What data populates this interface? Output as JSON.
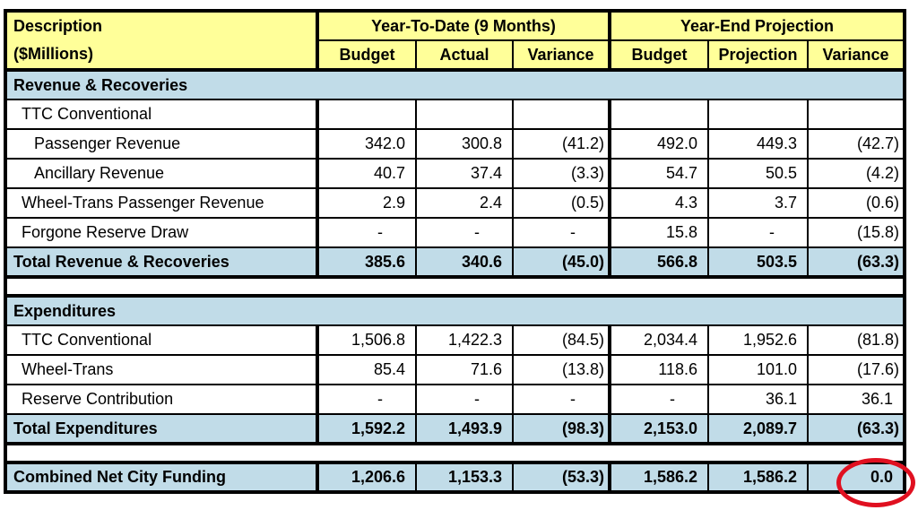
{
  "colors": {
    "header_bg": "#FFFF99",
    "band_bg": "#C1DCE8",
    "border": "#000000",
    "annotation_red": "#E01020",
    "page_bg": "#FFFFFF"
  },
  "header": {
    "description_line1": "Description",
    "description_line2": "($Millions)",
    "groups": [
      {
        "label": "Year-To-Date (9 Months)",
        "columns": [
          "Budget",
          "Actual",
          "Variance"
        ]
      },
      {
        "label": "Year-End Projection",
        "columns": [
          "Budget",
          "Projection",
          "Variance"
        ]
      }
    ]
  },
  "rows": [
    {
      "type": "section",
      "label": "Revenue & Recoveries"
    },
    {
      "type": "data",
      "indent": 1,
      "label": "TTC Conventional",
      "values": [
        "",
        "",
        "",
        "",
        "",
        ""
      ]
    },
    {
      "type": "data",
      "indent": 2,
      "label": "Passenger Revenue",
      "values": [
        "342.0",
        "300.8",
        "(41.2)",
        "492.0",
        "449.3",
        "(42.7)"
      ]
    },
    {
      "type": "data",
      "indent": 2,
      "label": "Ancillary Revenue",
      "values": [
        "40.7",
        "37.4",
        "(3.3)",
        "54.7",
        "50.5",
        "(4.2)"
      ]
    },
    {
      "type": "data",
      "indent": 1,
      "label": "Wheel-Trans Passenger Revenue",
      "values": [
        "2.9",
        "2.4",
        "(0.5)",
        "4.3",
        "3.7",
        "(0.6)"
      ]
    },
    {
      "type": "data",
      "indent": 1,
      "label": "Forgone Reserve Draw",
      "values": [
        "-",
        "-",
        "-",
        "15.8",
        "-",
        "(15.8)"
      ]
    },
    {
      "type": "total",
      "label": "Total Revenue & Recoveries",
      "values": [
        "385.6",
        "340.6",
        "(45.0)",
        "566.8",
        "503.5",
        "(63.3)"
      ]
    },
    {
      "type": "gap",
      "label": ""
    },
    {
      "type": "section",
      "label": "Expenditures"
    },
    {
      "type": "data",
      "indent": 1,
      "label": "TTC Conventional",
      "values": [
        "1,506.8",
        "1,422.3",
        "(84.5)",
        "2,034.4",
        "1,952.6",
        "(81.8)"
      ]
    },
    {
      "type": "data",
      "indent": 1,
      "label": "Wheel-Trans",
      "values": [
        "85.4",
        "71.6",
        "(13.8)",
        "118.6",
        "101.0",
        "(17.6)"
      ]
    },
    {
      "type": "data",
      "indent": 1,
      "label": "Reserve Contribution",
      "values": [
        "-",
        "-",
        "-",
        "-",
        "36.1",
        "36.1"
      ]
    },
    {
      "type": "total",
      "label": "Total Expenditures",
      "values": [
        "1,592.2",
        "1,493.9",
        "(98.3)",
        "2,153.0",
        "2,089.7",
        "(63.3)"
      ]
    },
    {
      "type": "gap",
      "label": ""
    },
    {
      "type": "grand",
      "label": "Combined Net City Funding",
      "values": [
        "1,206.6",
        "1,153.3",
        "(53.3)",
        "1,586.2",
        "1,586.2",
        "0.0"
      ]
    }
  ],
  "annotation": {
    "shape": "ellipse",
    "color": "#E01020",
    "circled_value": "0.0",
    "circled_cell": "Combined Net City Funding — Year-End Projection Variance"
  }
}
